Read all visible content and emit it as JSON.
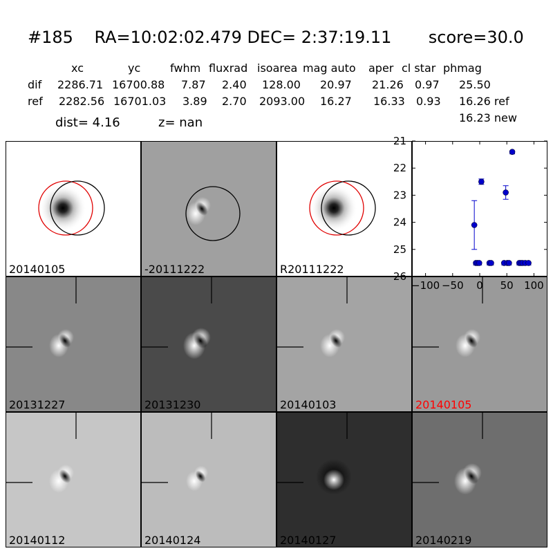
{
  "header": {
    "id": "#185",
    "ra": "RA=10:02:02.479",
    "dec": "DEC= 2:37:19.11",
    "score": "score=30.0"
  },
  "table": {
    "columns": [
      "xc",
      "yc",
      "fwhm",
      "fluxrad",
      "isoarea",
      "mag auto",
      "aper",
      "cl star",
      "phmag"
    ],
    "rows": [
      {
        "name": "dif",
        "values": [
          "2286.71",
          "16700.88",
          "7.87",
          "2.40",
          "128.00",
          "20.97",
          "21.26",
          "0.97",
          "25.50"
        ]
      },
      {
        "name": "ref",
        "values": [
          "2282.56",
          "16701.03",
          "3.89",
          "2.70",
          "2093.00",
          "16.27",
          "16.33",
          "0.93",
          "16.26 ref"
        ]
      }
    ],
    "extra_phmag": "16.23 new"
  },
  "info": {
    "dist": "dist=  4.16",
    "z": "z=   nan"
  },
  "panels": [
    {
      "label": "20140105",
      "bg": "#ffffff",
      "style": "ref-star",
      "circles": true,
      "label_color": "#000000"
    },
    {
      "label": "-20111222",
      "bg": "#a0a0a0",
      "style": "dipole-dark",
      "circles": "black-only",
      "label_color": "#000000"
    },
    {
      "label": "R20111222",
      "bg": "#ffffff",
      "style": "ref-star",
      "circles": true,
      "label_color": "#000000"
    },
    {
      "label": "20131227",
      "bg": "#888888",
      "style": "dipole",
      "crosshair": true,
      "label_color": "#000000"
    },
    {
      "label": "20131230",
      "bg": "#4a4a4a",
      "style": "dipole-strong",
      "crosshair": true,
      "label_color": "#000000"
    },
    {
      "label": "20140103",
      "bg": "#a4a4a4",
      "style": "dipole",
      "crosshair": true,
      "label_color": "#000000"
    },
    {
      "label": "20140105",
      "bg": "#9a9a9a",
      "style": "dipole",
      "crosshair": true,
      "label_color": "#ff0000"
    },
    {
      "label": "20140112",
      "bg": "#c6c6c6",
      "style": "dipole",
      "crosshair": true,
      "label_color": "#000000"
    },
    {
      "label": "20140124",
      "bg": "#bcbcbc",
      "style": "dipole-soft",
      "crosshair": true,
      "label_color": "#000000"
    },
    {
      "label": "20140127",
      "bg": "#2e2e2e",
      "style": "bright-ring",
      "crosshair": true,
      "label_color": "#000000"
    },
    {
      "label": "20140219",
      "bg": "#6e6e6e",
      "style": "dipole-strong",
      "crosshair": true,
      "label_color": "#000000"
    }
  ],
  "chart_data": {
    "type": "scatter",
    "title": "",
    "xlabel": "",
    "ylabel": "",
    "xlim": [
      -125,
      125
    ],
    "ylim": [
      26,
      21
    ],
    "xticks": [
      -100,
      -50,
      0,
      50,
      100
    ],
    "yticks": [
      21,
      22,
      23,
      24,
      25,
      26
    ],
    "y_inverted": true,
    "marker_color": "#0000cc",
    "points": [
      {
        "x": -10,
        "y": 24.1,
        "err": 0.9
      },
      {
        "x": -7,
        "y": 25.5,
        "err": 0.05
      },
      {
        "x": -4,
        "y": 25.5,
        "err": 0.05
      },
      {
        "x": -1,
        "y": 25.5,
        "err": 0.05
      },
      {
        "x": 3,
        "y": 22.5,
        "err": 0.1
      },
      {
        "x": 18,
        "y": 25.5,
        "err": 0.05
      },
      {
        "x": 21,
        "y": 25.5,
        "err": 0.05
      },
      {
        "x": 45,
        "y": 25.5,
        "err": 0.05
      },
      {
        "x": 48,
        "y": 22.9,
        "err": 0.25
      },
      {
        "x": 51,
        "y": 25.5,
        "err": 0.05
      },
      {
        "x": 54,
        "y": 25.5,
        "err": 0.05
      },
      {
        "x": 60,
        "y": 21.4,
        "err": 0.05
      },
      {
        "x": 73,
        "y": 25.5,
        "err": 0.05
      },
      {
        "x": 76,
        "y": 25.5,
        "err": 0.05
      },
      {
        "x": 79,
        "y": 25.5,
        "err": 0.05
      },
      {
        "x": 84,
        "y": 25.5,
        "err": 0.05
      },
      {
        "x": 90,
        "y": 25.5,
        "err": 0.05
      }
    ]
  }
}
